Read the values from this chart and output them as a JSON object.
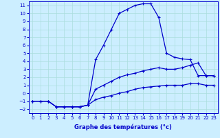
{
  "xlabel": "Graphe des températures (°c)",
  "background_color": "#cceeff",
  "grid_color": "#aadddd",
  "line_color": "#0000cc",
  "hours": [
    0,
    1,
    2,
    3,
    4,
    5,
    6,
    7,
    8,
    9,
    10,
    11,
    12,
    13,
    14,
    15,
    16,
    17,
    18,
    19,
    20,
    21,
    22,
    23
  ],
  "curve_main": [
    -1,
    -1,
    -1,
    -1.7,
    -1.7,
    -1.7,
    -1.7,
    -1.5,
    4.2,
    6.0,
    8.0,
    10.0,
    10.5,
    11.0,
    11.2,
    11.2,
    9.5,
    5.0,
    4.5,
    4.3,
    4.2,
    2.2,
    2.2,
    2.2
  ],
  "curve_low": [
    -1,
    -1,
    -1,
    -1.7,
    -1.7,
    -1.7,
    -1.7,
    -1.5,
    -0.8,
    -0.5,
    -0.3,
    0.0,
    0.2,
    0.5,
    0.7,
    0.8,
    0.9,
    1.0,
    1.0,
    1.0,
    1.2,
    1.2,
    1.0,
    1.0
  ],
  "curve_mid": [
    -1,
    -1,
    -1,
    -1.7,
    -1.7,
    -1.7,
    -1.7,
    -1.5,
    0.5,
    1.0,
    1.5,
    2.0,
    2.3,
    2.5,
    2.8,
    3.0,
    3.2,
    3.0,
    3.0,
    3.2,
    3.5,
    3.8,
    2.2,
    2.2
  ],
  "ylim": [
    -2.5,
    11.5
  ],
  "yticks": [
    -2,
    -1,
    0,
    1,
    2,
    3,
    4,
    5,
    6,
    7,
    8,
    9,
    10,
    11
  ],
  "xlim": [
    -0.5,
    23.5
  ],
  "xticks": [
    0,
    1,
    2,
    3,
    4,
    5,
    6,
    7,
    8,
    9,
    10,
    11,
    12,
    13,
    14,
    15,
    16,
    17,
    18,
    19,
    20,
    21,
    22,
    23
  ],
  "tick_labelsize": 5,
  "xlabel_fontsize": 6,
  "marker_size": 2.5,
  "linewidth": 0.9
}
